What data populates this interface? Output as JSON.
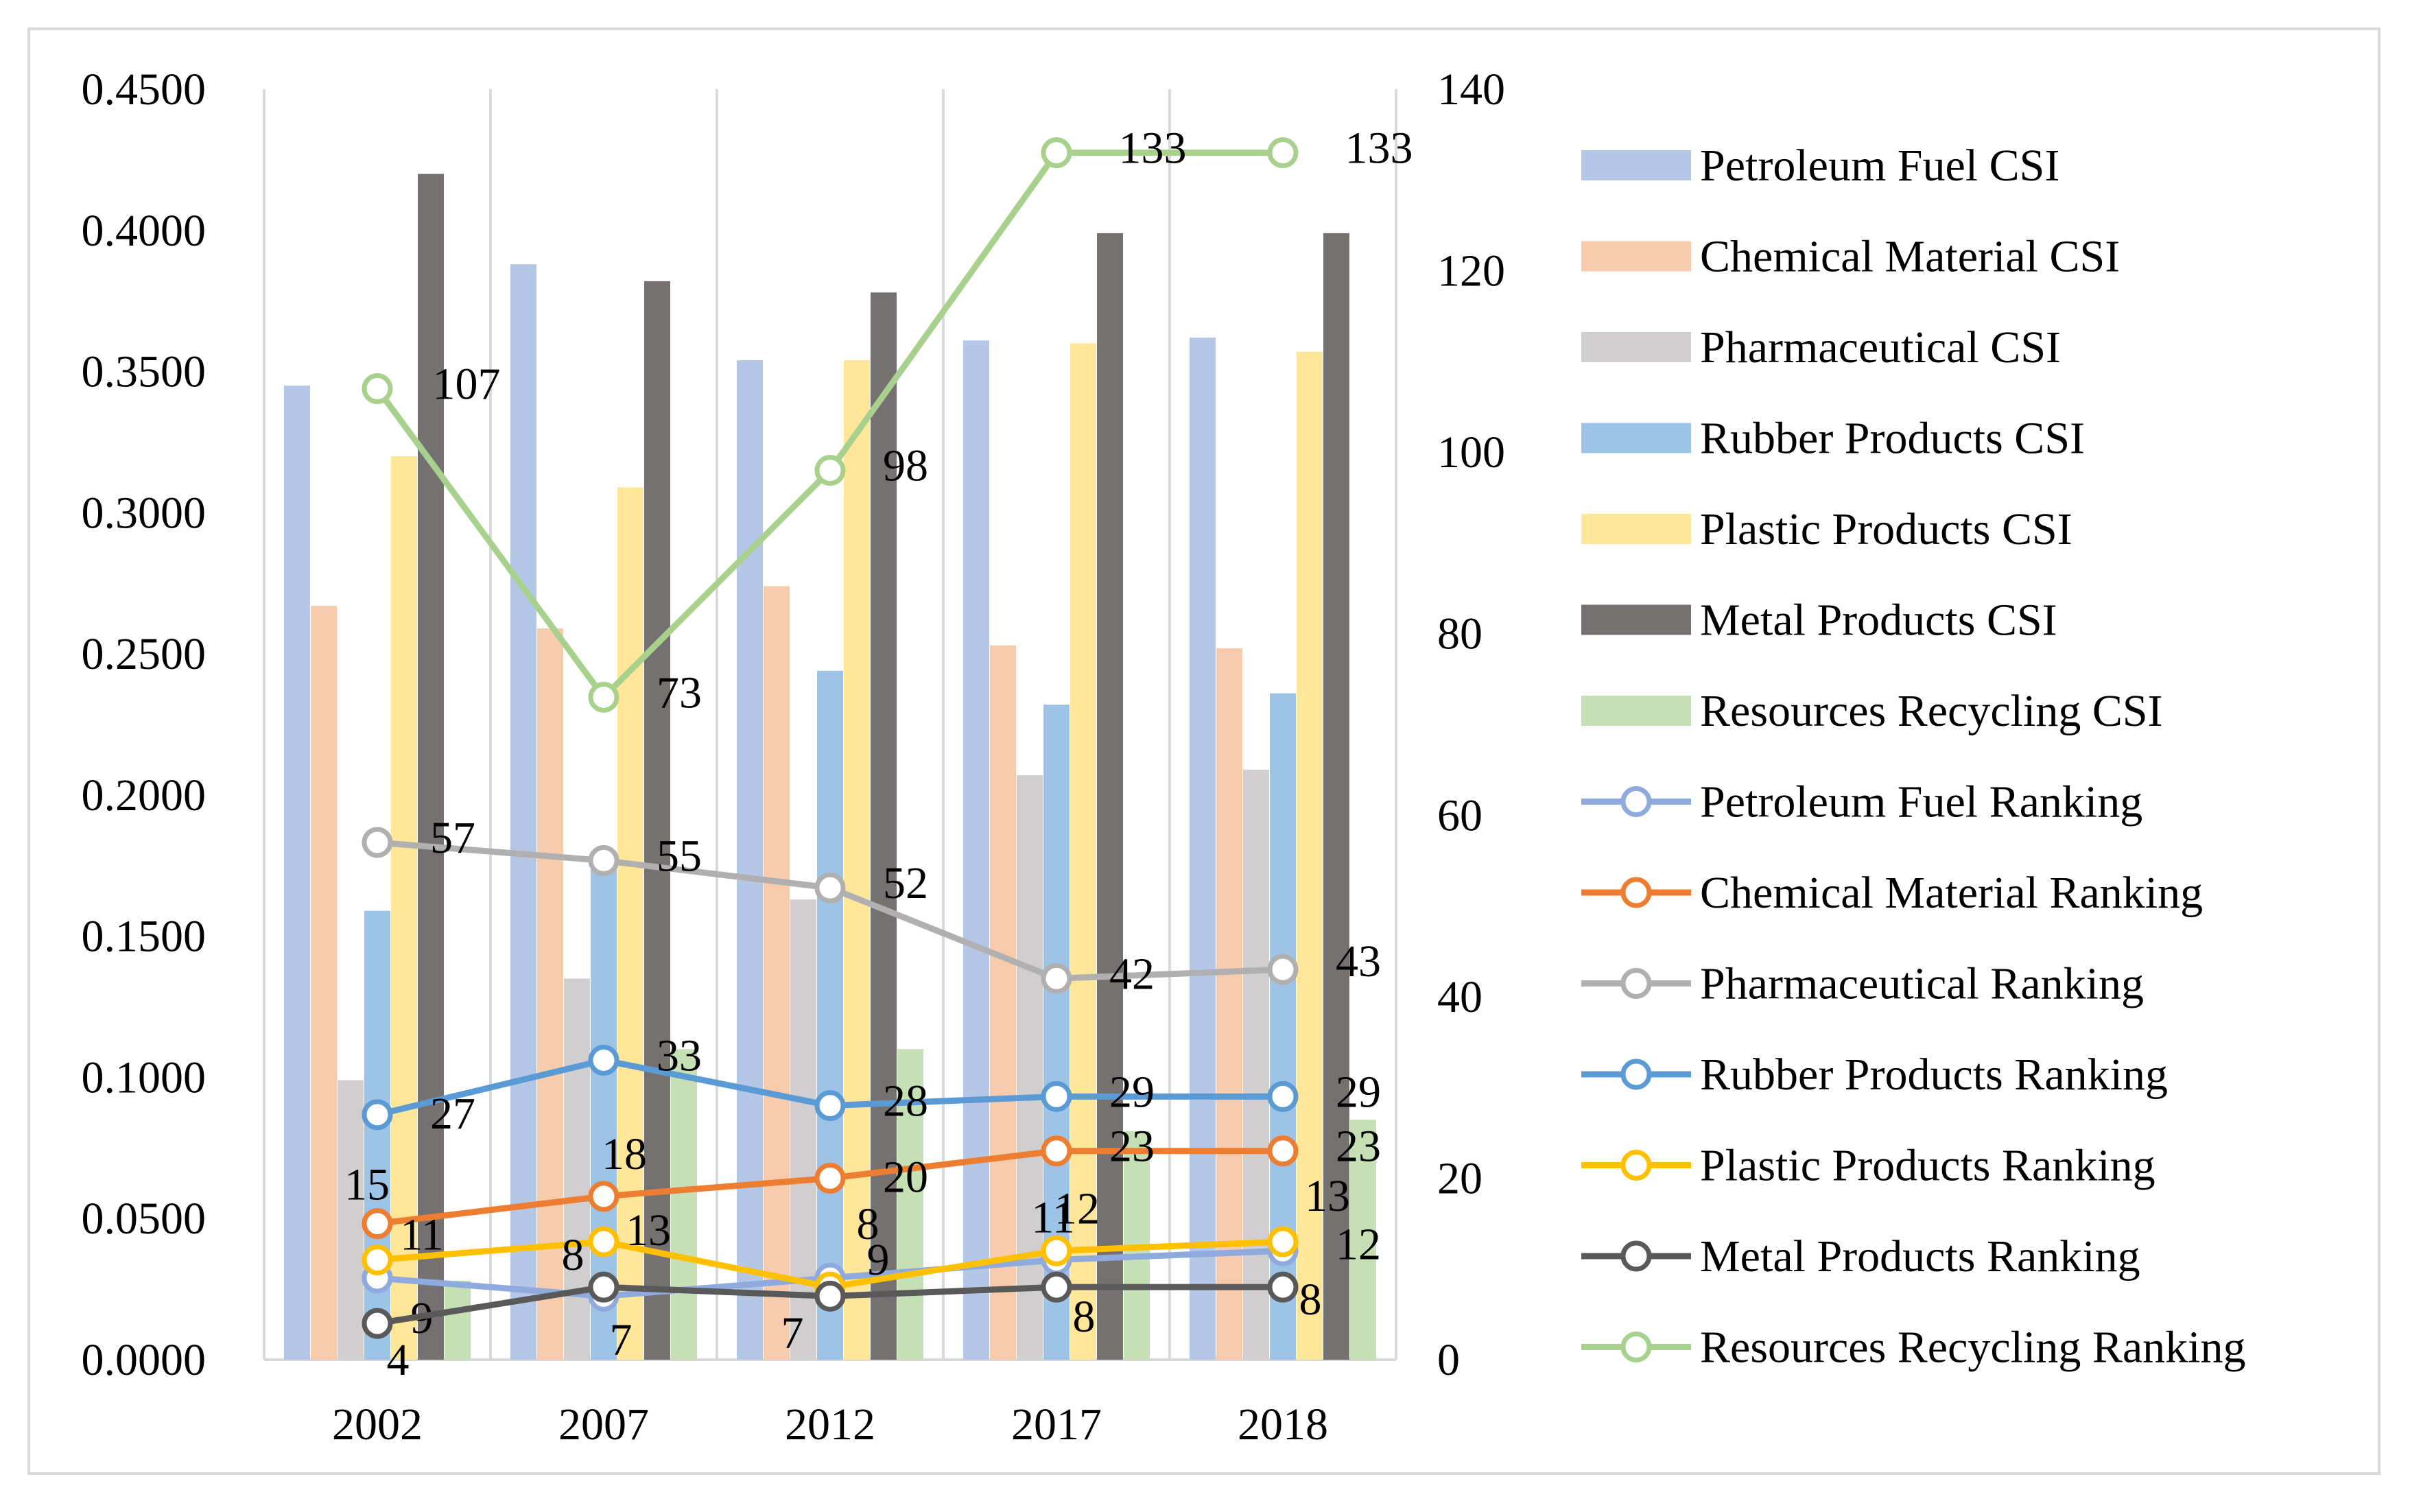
{
  "chart_data": {
    "type": "bar+line",
    "categories": [
      "2002",
      "2007",
      "2012",
      "2017",
      "2018"
    ],
    "left_axis": {
      "min": 0,
      "max": 0.45,
      "step": 0.05,
      "tick_labels": [
        "0.0000",
        "0.0500",
        "0.1000",
        "0.1500",
        "0.2000",
        "0.2500",
        "0.3000",
        "0.3500",
        "0.4000",
        "0.4500"
      ]
    },
    "right_axis": {
      "min": 0,
      "max": 140,
      "step": 20,
      "tick_labels": [
        "0",
        "20",
        "40",
        "60",
        "80",
        "100",
        "120",
        "140"
      ]
    },
    "bar_series": [
      {
        "name": "Petroleum Fuel CSI",
        "color": "#b4c7e7",
        "values": [
          0.345,
          0.388,
          0.354,
          0.361,
          0.362
        ]
      },
      {
        "name": "Chemical Material CSI",
        "color": "#f8cbad",
        "values": [
          0.267,
          0.259,
          0.274,
          0.253,
          0.252
        ]
      },
      {
        "name": "Pharmaceutical CSI",
        "color": "#d0cece",
        "values": [
          0.099,
          0.135,
          0.163,
          0.207,
          0.209
        ]
      },
      {
        "name": "Rubber Products CSI",
        "color": "#9dc3e6",
        "values": [
          0.159,
          0.18,
          0.244,
          0.232,
          0.236
        ]
      },
      {
        "name": "Plastic Products CSI",
        "color": "#ffe699",
        "values": [
          0.32,
          0.309,
          0.354,
          0.36,
          0.357
        ]
      },
      {
        "name": "Metal Products CSI",
        "color": "#767171",
        "values": [
          0.42,
          0.382,
          0.378,
          0.399,
          0.399
        ]
      },
      {
        "name": "Resources Recycling CSI",
        "color": "#c5e0b4",
        "values": [
          0.028,
          0.11,
          0.11,
          0.081,
          0.085
        ]
      }
    ],
    "line_series": [
      {
        "name": "Petroleum Fuel Ranking",
        "color": "#8faadc",
        "values": [
          9,
          7,
          9,
          11,
          12
        ],
        "labels": [
          "9",
          "7",
          "9",
          "11",
          "12"
        ]
      },
      {
        "name": "Chemical Material Ranking",
        "color": "#ed7d31",
        "values": [
          15,
          18,
          20,
          23,
          23
        ],
        "labels": [
          "15",
          "18",
          "20",
          "23",
          "23"
        ]
      },
      {
        "name": "Pharmaceutical Ranking",
        "color": "#b0b0b0",
        "values": [
          57,
          55,
          52,
          42,
          43
        ],
        "labels": [
          "57",
          "55",
          "52",
          "42",
          "43"
        ]
      },
      {
        "name": "Rubber Products Ranking",
        "color": "#5b9bd5",
        "values": [
          27,
          33,
          28,
          29,
          29
        ],
        "labels": [
          "27",
          "33",
          "28",
          "29",
          "29"
        ]
      },
      {
        "name": "Plastic Products Ranking",
        "color": "#ffc000",
        "values": [
          11,
          13,
          8,
          12,
          13
        ],
        "labels": [
          "11",
          "13",
          "8",
          "12",
          "13"
        ]
      },
      {
        "name": "Metal Products Ranking",
        "color": "#595959",
        "values": [
          4,
          8,
          7,
          8,
          8
        ],
        "labels": [
          "4",
          "8",
          "7",
          "8",
          "8"
        ]
      },
      {
        "name": "Resources Recycling Ranking",
        "color": "#a9d18e",
        "values": [
          107,
          73,
          98,
          133,
          133
        ],
        "labels": [
          "107",
          "73",
          "98",
          "133",
          "133"
        ]
      }
    ],
    "legend_position": "right",
    "gridlines": "vertical category separators"
  }
}
